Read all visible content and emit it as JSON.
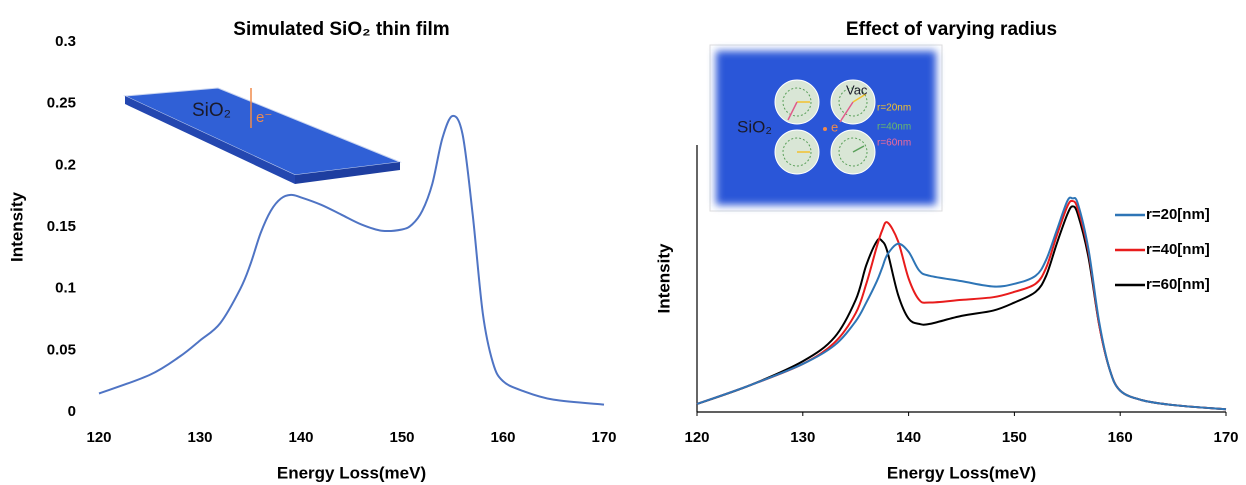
{
  "chart_data": [
    {
      "type": "line",
      "title": "Simulated SiO₂ thin film",
      "x_label": "Energy Loss(meV)",
      "y_label": "Intensity",
      "x": [
        120,
        125,
        128,
        130,
        132,
        134,
        135,
        136,
        137,
        138,
        139,
        140,
        142,
        144,
        146,
        148,
        150,
        151,
        152,
        153,
        154,
        155,
        156,
        157,
        158,
        159,
        160,
        162,
        165,
        170
      ],
      "values": [
        0.015,
        0.03,
        0.045,
        0.058,
        0.072,
        0.1,
        0.12,
        0.145,
        0.163,
        0.173,
        0.176,
        0.174,
        0.168,
        0.16,
        0.152,
        0.147,
        0.148,
        0.152,
        0.163,
        0.185,
        0.222,
        0.24,
        0.225,
        0.16,
        0.08,
        0.04,
        0.025,
        0.017,
        0.01,
        0.006
      ],
      "color": "#4f74c4",
      "xlim": [
        120,
        170
      ],
      "xticks": [
        120,
        130,
        140,
        150,
        160,
        170
      ],
      "ylim": [
        0,
        0.3
      ],
      "yticks": [
        0,
        0.05,
        0.1,
        0.15,
        0.2,
        0.25,
        0.3
      ],
      "annotations": [
        "SiO₂",
        "e⁻"
      ]
    },
    {
      "type": "line",
      "title": "Effect of varying radius",
      "x_label": "Energy Loss(meV)",
      "y_label": "Intensity",
      "x": [
        120,
        125,
        130,
        133,
        135,
        136,
        137,
        137.5,
        138,
        139,
        140,
        141,
        142,
        145,
        148,
        150,
        152,
        153,
        154,
        155,
        155.5,
        156,
        157,
        158,
        159,
        160,
        162,
        165,
        170
      ],
      "series": [
        {
          "name": "r=20[nm]",
          "color": "#2e75b6",
          "values": [
            0.03,
            0.1,
            0.18,
            0.25,
            0.34,
            0.41,
            0.49,
            0.54,
            0.59,
            0.63,
            0.6,
            0.53,
            0.51,
            0.49,
            0.47,
            0.48,
            0.51,
            0.57,
            0.68,
            0.79,
            0.8,
            0.78,
            0.61,
            0.34,
            0.16,
            0.08,
            0.045,
            0.026,
            0.01
          ]
        },
        {
          "name": "r=40[nm]",
          "color": "#e81c1c",
          "values": [
            0.03,
            0.1,
            0.18,
            0.26,
            0.37,
            0.48,
            0.62,
            0.68,
            0.71,
            0.64,
            0.5,
            0.42,
            0.41,
            0.42,
            0.43,
            0.45,
            0.48,
            0.54,
            0.66,
            0.77,
            0.79,
            0.76,
            0.6,
            0.33,
            0.16,
            0.08,
            0.045,
            0.026,
            0.01
          ]
        },
        {
          "name": "r=60[nm]",
          "color": "#000000",
          "values": [
            0.03,
            0.1,
            0.19,
            0.28,
            0.42,
            0.55,
            0.64,
            0.64,
            0.6,
            0.44,
            0.35,
            0.33,
            0.33,
            0.36,
            0.38,
            0.41,
            0.45,
            0.51,
            0.63,
            0.74,
            0.77,
            0.74,
            0.58,
            0.33,
            0.16,
            0.08,
            0.045,
            0.026,
            0.01
          ]
        }
      ],
      "xlim": [
        120,
        170
      ],
      "xticks": [
        120,
        130,
        140,
        150,
        160,
        170
      ],
      "ylim": [
        0,
        1
      ],
      "legend": "right",
      "annotations": [
        "SiO₂",
        "Vac",
        "e",
        "r=20nm",
        "r=40nm",
        "r=60nm"
      ]
    }
  ]
}
